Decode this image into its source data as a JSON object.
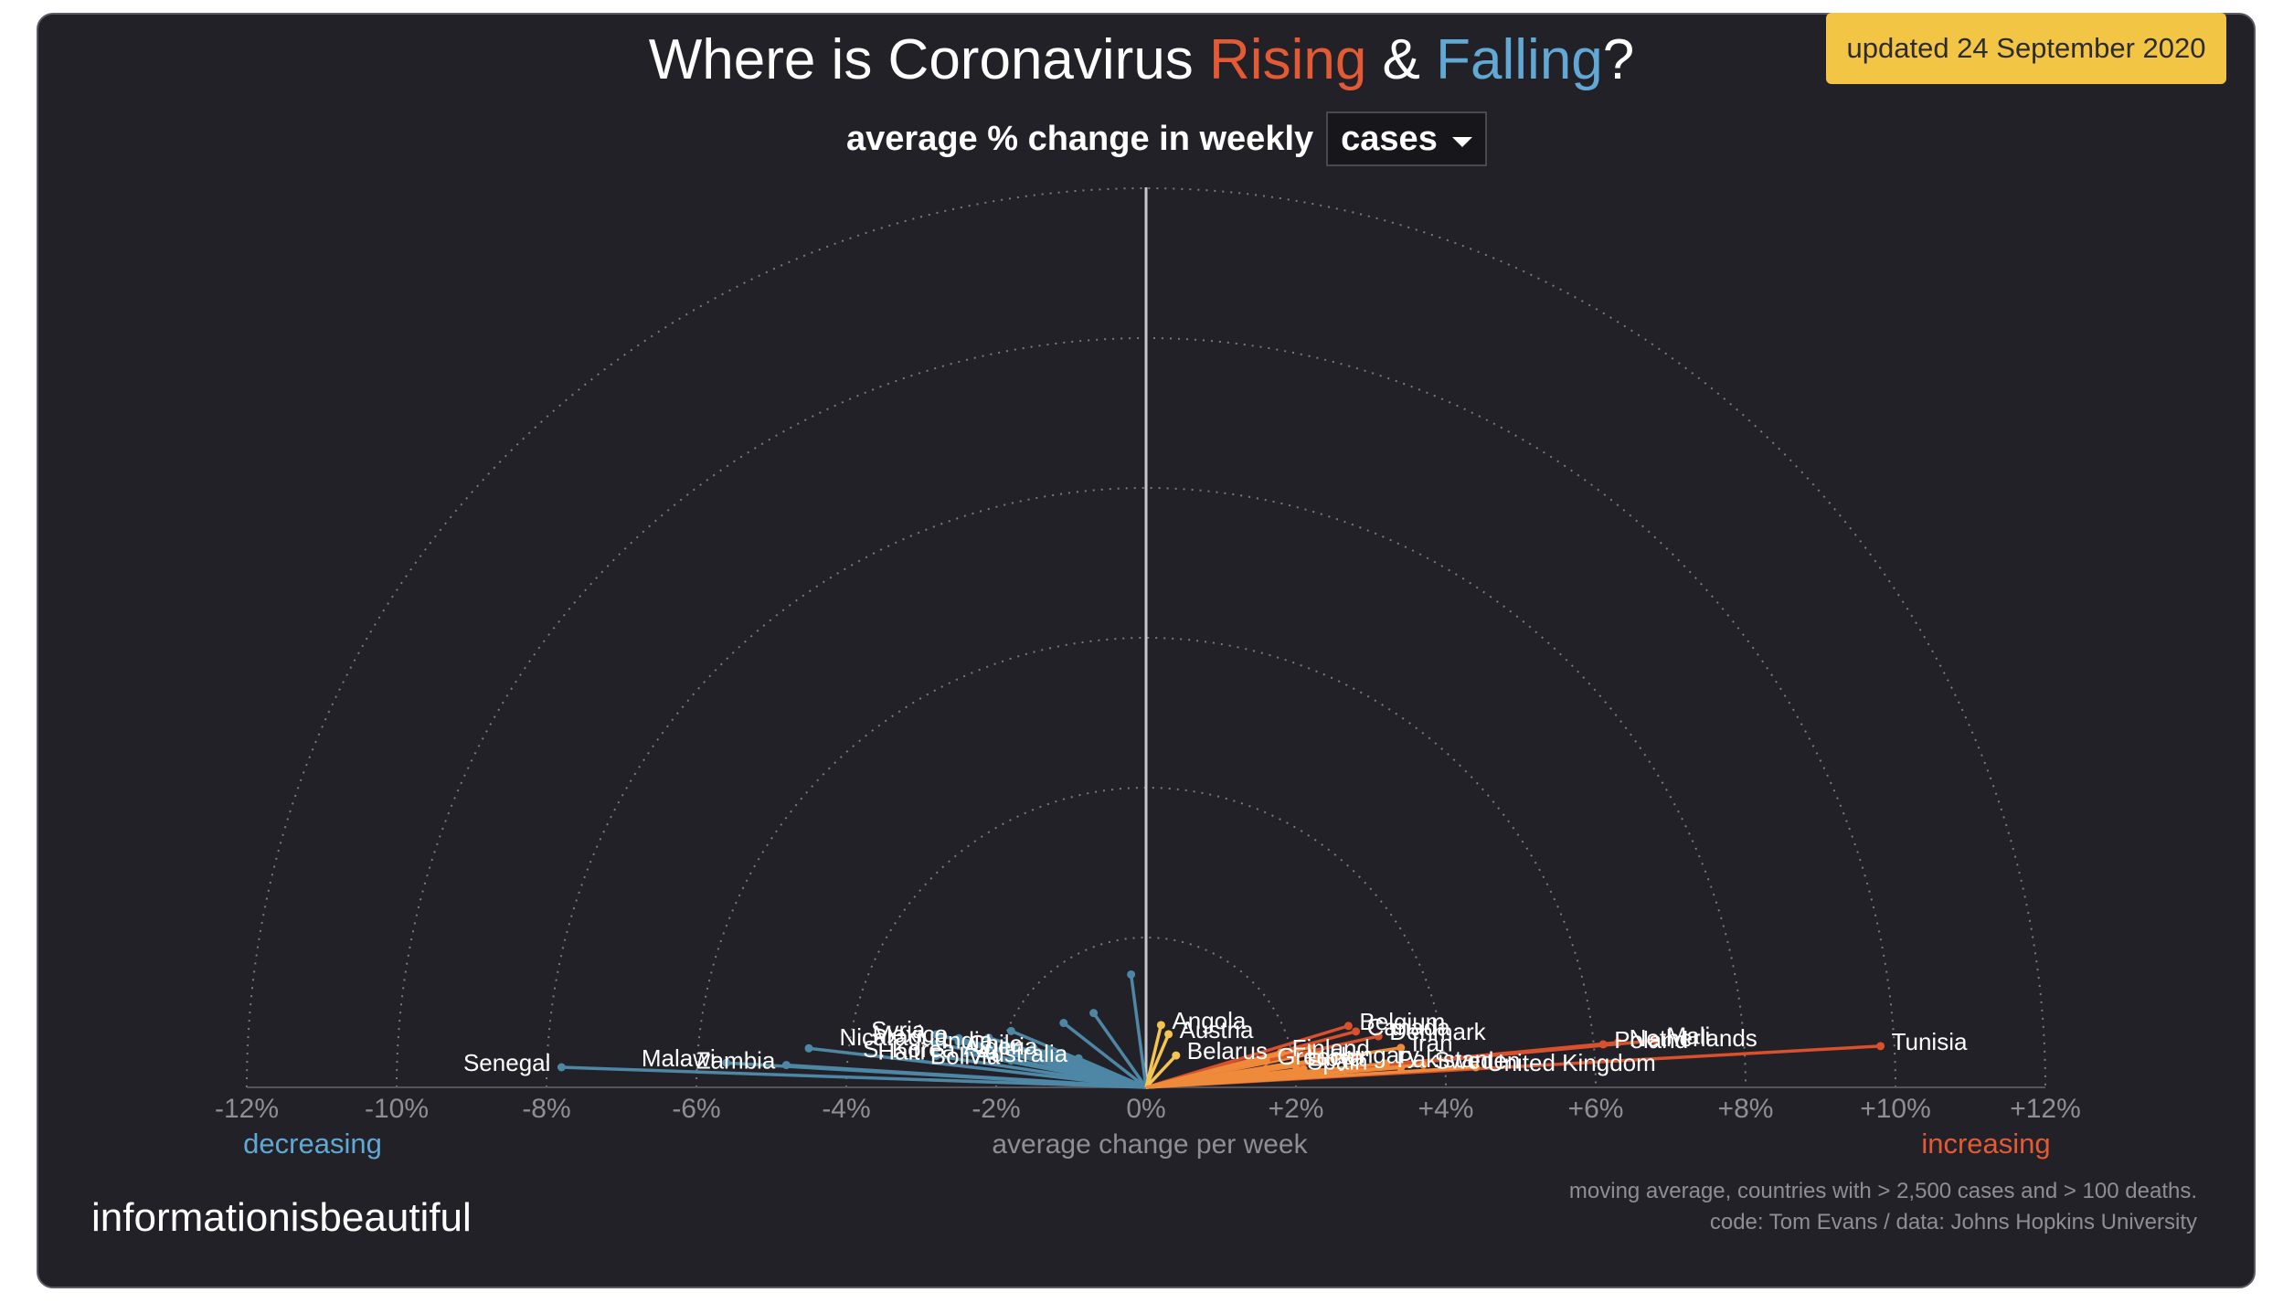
{
  "header": {
    "title_start": "Where is Coronavirus ",
    "title_rising": "Rising",
    "title_mid": " & ",
    "title_falling": "Falling",
    "title_end": "?",
    "subtitle": "average % change in weekly",
    "metric_selected": "cases",
    "updated": "updated 24 September 2020"
  },
  "footer": {
    "brand": "informationisbeautiful",
    "note1": "moving average, countries with > 2,500 cases and > 100 deaths.",
    "note2": "code: Tom Evans / data: Johns Hopkins University"
  },
  "colors": {
    "background": "#222127",
    "rising": "#e35a34",
    "falling": "#61a8d4",
    "decreasing_line": "#4e87a6",
    "increasing_dark": "#d9502c",
    "increasing_mid": "#ef8a3a",
    "increasing_light": "#f6c453",
    "badge": "#f3c545"
  },
  "chart_data": {
    "type": "radial-lines",
    "title": "Where is Coronavirus Rising & Falling?",
    "xlabel": "average change per week",
    "xlim": [
      -12,
      12
    ],
    "ticks": [
      "-12%",
      "-10%",
      "-8%",
      "-6%",
      "-4%",
      "-2%",
      "0%",
      "+2%",
      "+4%",
      "+6%",
      "+8%",
      "+10%",
      "+12%"
    ],
    "left_label": "decreasing",
    "right_label": "increasing",
    "grid": true,
    "countries": [
      {
        "name": "Senegal",
        "value": -7.8,
        "labeled": true
      },
      {
        "name": "Zambia",
        "value": -4.8,
        "labeled": true
      },
      {
        "name": "Malawi",
        "value": -5.6,
        "labeled": true
      },
      {
        "name": "Bolivia",
        "value": -1.8,
        "labeled": true
      },
      {
        "name": "Australia",
        "value": -0.9,
        "labeled": true
      },
      {
        "name": "Haiti",
        "value": -2.8,
        "labeled": true
      },
      {
        "name": "S. Korea",
        "value": -2.4,
        "labeled": true
      },
      {
        "name": "Algeria",
        "value": -1.3,
        "labeled": true
      },
      {
        "name": "Chile",
        "value": -1.5,
        "labeled": true
      },
      {
        "name": "India",
        "value": -1.9,
        "labeled": true
      },
      {
        "name": "Nicaragua",
        "value": -2.5,
        "labeled": true
      },
      {
        "name": "Mexico",
        "value": -2.5,
        "labeled": true
      },
      {
        "name": "Syria",
        "value": -2.8,
        "labeled": true
      },
      {
        "name": "",
        "value": -4.5,
        "labeled": false
      },
      {
        "name": "",
        "value": -2.8,
        "labeled": false
      },
      {
        "name": "",
        "value": -2.1,
        "labeled": false
      },
      {
        "name": "",
        "value": -1.8,
        "labeled": false
      },
      {
        "name": "",
        "value": -1.1,
        "labeled": false
      },
      {
        "name": "",
        "value": -0.7,
        "labeled": false
      },
      {
        "name": "",
        "value": -0.2,
        "labeled": false
      },
      {
        "name": "Belgium",
        "value": 2.7,
        "labeled": true
      },
      {
        "name": "",
        "value": 2.2,
        "labeled": false
      },
      {
        "name": "Canada",
        "value": 2.8,
        "labeled": true
      },
      {
        "name": "",
        "value": 2.3,
        "labeled": false
      },
      {
        "name": "Denmark",
        "value": 3.1,
        "labeled": true
      },
      {
        "name": "",
        "value": 2.8,
        "labeled": false
      },
      {
        "name": "Mali",
        "value": 6.8,
        "labeled": true
      },
      {
        "name": "Netherlands",
        "value": 6.3,
        "labeled": true
      },
      {
        "name": "Poland",
        "value": 6.1,
        "labeled": true
      },
      {
        "name": "Tunisia",
        "value": 9.8,
        "labeled": true
      },
      {
        "name": "Iran",
        "value": 3.4,
        "labeled": true
      },
      {
        "name": "",
        "value": 3.4,
        "labeled": false
      },
      {
        "name": "Angola",
        "value": 0.2,
        "labeled": true
      },
      {
        "name": "Finland",
        "value": 1.8,
        "labeled": true
      },
      {
        "name": "Austria",
        "value": 0.3,
        "labeled": true
      },
      {
        "name": "Belarus",
        "value": 0.4,
        "labeled": true
      },
      {
        "name": "",
        "value": 1.6,
        "labeled": false
      },
      {
        "name": "",
        "value": 2.1,
        "labeled": false
      },
      {
        "name": "Hungary",
        "value": 2.3,
        "labeled": true
      },
      {
        "name": "Greece",
        "value": 1.6,
        "labeled": true
      },
      {
        "name": "Libya",
        "value": 2.0,
        "labeled": true
      },
      {
        "name": "Pakistan",
        "value": 3.2,
        "labeled": true
      },
      {
        "name": "Sweden",
        "value": 3.7,
        "labeled": true
      },
      {
        "name": "Spain",
        "value": 2.0,
        "labeled": true
      },
      {
        "name": "United Kingdom",
        "value": 4.4,
        "labeled": true
      }
    ]
  }
}
